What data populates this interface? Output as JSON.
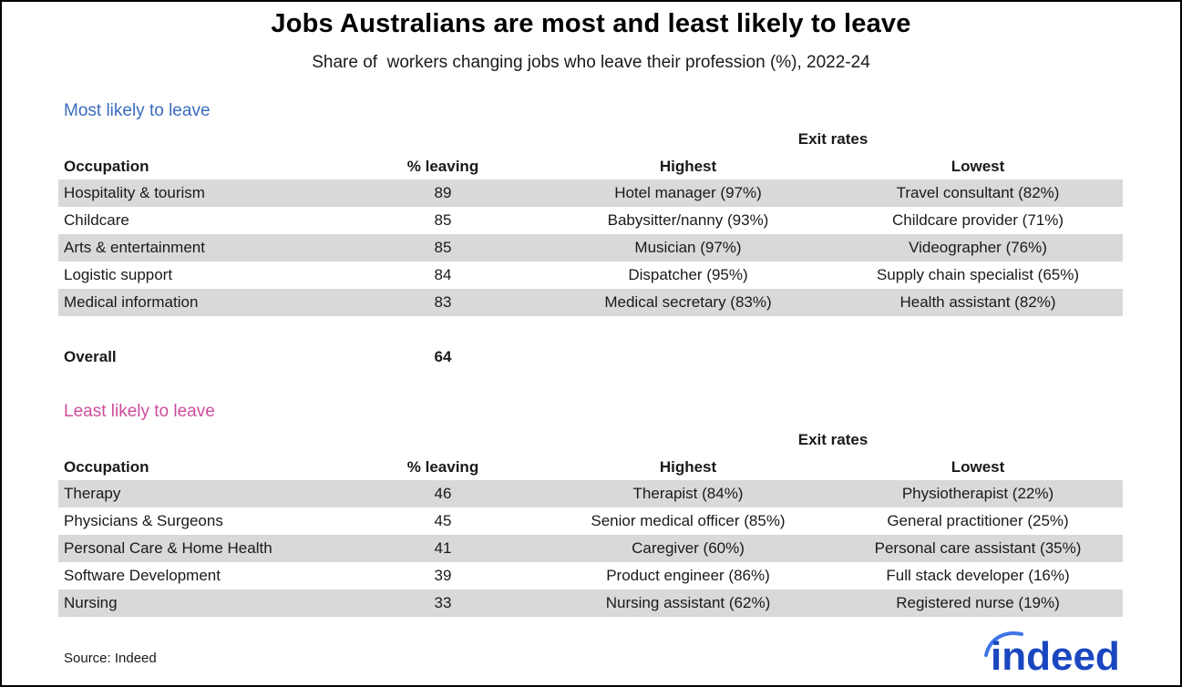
{
  "chart_data": {
    "type": "table",
    "title": "Jobs Australians are most and least likely to leave",
    "subtitle": "Share of  workers changing jobs who leave their profession (%), 2022-24",
    "sections": [
      {
        "label": "Most likely to leave",
        "group_header": "Exit rates",
        "columns": [
          "Occupation",
          "% leaving",
          "Highest",
          "Lowest"
        ],
        "rows": [
          [
            "Hospitality & tourism",
            89,
            "Hotel manager (97%)",
            "Travel consultant (82%)"
          ],
          [
            "Childcare",
            85,
            "Babysitter/nanny (93%)",
            "Childcare provider (71%)"
          ],
          [
            "Arts & entertainment",
            85,
            "Musician (97%)",
            "Videographer (76%)"
          ],
          [
            "Logistic support",
            84,
            "Dispatcher (95%)",
            "Supply chain specialist (65%)"
          ],
          [
            "Medical information",
            83,
            "Medical secretary (83%)",
            "Health assistant (82%)"
          ]
        ]
      },
      {
        "label": "Least likely to leave",
        "group_header": "Exit rates",
        "columns": [
          "Occupation",
          "% leaving",
          "Highest",
          "Lowest"
        ],
        "rows": [
          [
            "Therapy",
            46,
            "Therapist (84%)",
            "Physiotherapist (22%)"
          ],
          [
            "Physicians & Surgeons",
            45,
            "Senior medical officer (85%)",
            "General practitioner (25%)"
          ],
          [
            "Personal Care & Home Health",
            41,
            "Caregiver (60%)",
            "Personal care assistant (35%)"
          ],
          [
            "Software Development",
            39,
            "Product engineer (86%)",
            "Full stack developer (16%)"
          ],
          [
            "Nursing",
            33,
            "Nursing assistant (62%)",
            "Registered nurse (19%)"
          ]
        ]
      }
    ],
    "overall": {
      "label": "Overall",
      "value": "64"
    },
    "source": "Source: Indeed",
    "logo_text": "indeed"
  },
  "colors": {
    "most_label": "#3a6cbe",
    "least_label": "#cf4d9d",
    "row_stripe": "#d9d9d9",
    "logo_blue": "#1a47c0",
    "logo_swoosh": "#3f74e6"
  }
}
